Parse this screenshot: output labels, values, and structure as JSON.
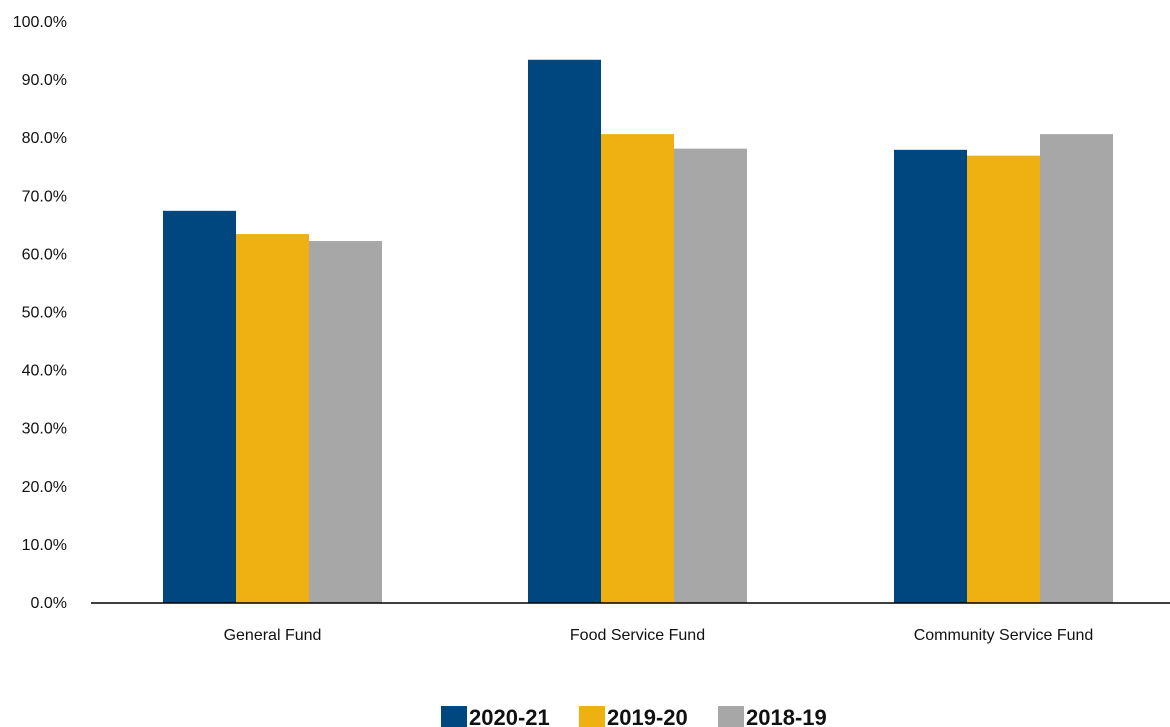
{
  "chart_data": {
    "type": "bar",
    "categories": [
      "General Fund",
      "Food Service Fund",
      "Community Service Fund"
    ],
    "series": [
      {
        "name": "2020-21",
        "color": "#00467f",
        "values": [
          67.5,
          93.5,
          78.0
        ]
      },
      {
        "name": "2019-20",
        "color": "#eeb111",
        "values": [
          63.5,
          80.7,
          77.0
        ]
      },
      {
        "name": "2018-19",
        "color": "#a7a7a7",
        "values": [
          62.3,
          78.2,
          80.7
        ]
      }
    ],
    "y_ticks": [
      "0.0%",
      "10.0%",
      "20.0%",
      "30.0%",
      "40.0%",
      "50.0%",
      "60.0%",
      "70.0%",
      "80.0%",
      "90.0%",
      "100.0%"
    ],
    "ylim": [
      0,
      100
    ],
    "grid": false,
    "legend_position": "bottom-center",
    "title": "",
    "xlabel": "",
    "ylabel": ""
  }
}
